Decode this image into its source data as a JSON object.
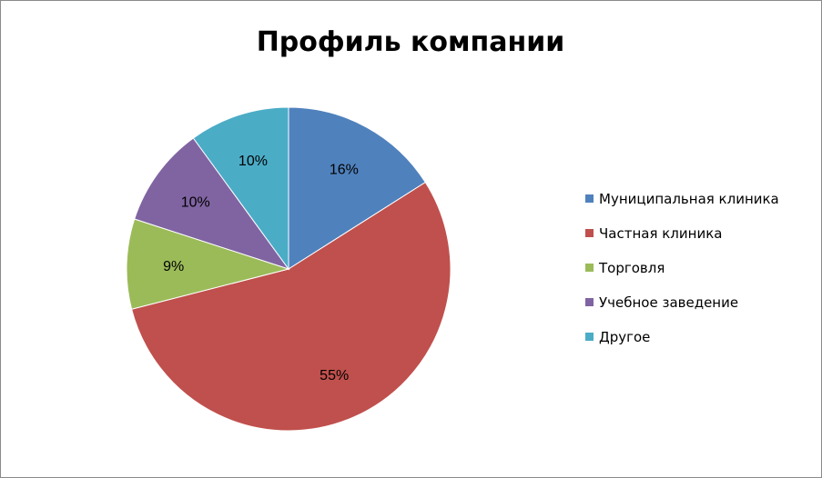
{
  "chart_data": {
    "type": "pie",
    "title": "Профиль компании",
    "categories": [
      "Муниципальная клиника",
      "Частная клиника",
      "Торговля",
      "Учебное заведение",
      "Другое"
    ],
    "values": [
      16,
      55,
      9,
      10,
      10
    ],
    "labels": [
      "16%",
      "55%",
      "9%",
      "10%",
      "10%"
    ],
    "colors": [
      "#4F81BD",
      "#C0504D",
      "#9BBB59",
      "#8064A2",
      "#4BACC6"
    ],
    "start_angle_deg": 0,
    "direction": "clockwise",
    "legend_position": "right"
  }
}
